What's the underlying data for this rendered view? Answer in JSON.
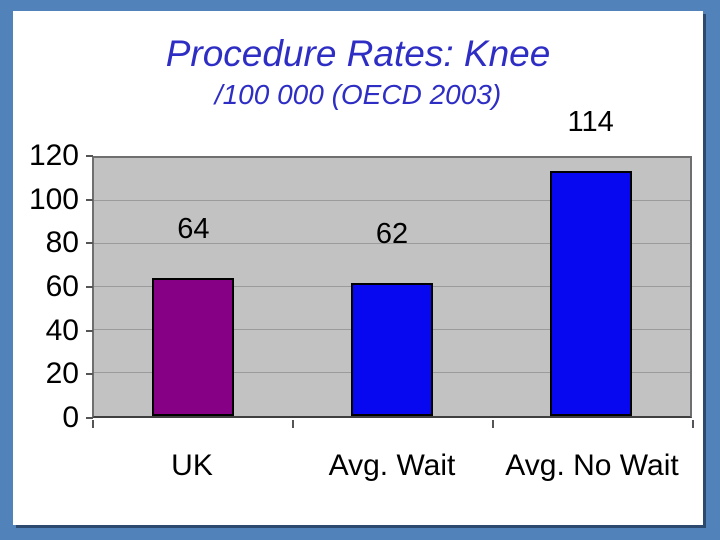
{
  "frame": {
    "outer_color": "#5282ba",
    "slide_bg": "#ffffff",
    "shadow_color": "#2c4a70"
  },
  "chart_data": {
    "type": "bar",
    "title": "Procedure Rates: Knee",
    "subtitle": "/100 000 (OECD 2003)",
    "title_color": "#2e2ec4",
    "categories": [
      "UK",
      "Avg. Wait",
      "Avg. No Wait"
    ],
    "values": [
      64,
      62,
      114
    ],
    "value_labels": [
      "64",
      "62",
      "114"
    ],
    "bar_colors": [
      "#850085",
      "#0707f0",
      "#0707f0"
    ],
    "ylim": [
      0,
      120
    ],
    "ytick_step": 20,
    "yticks": [
      0,
      20,
      40,
      60,
      80,
      100,
      120
    ],
    "grid": true,
    "legend": null,
    "plot_bg": "#c2c2c2",
    "gridline_color": "#9b9b9b",
    "xlabel": "",
    "ylabel": ""
  }
}
